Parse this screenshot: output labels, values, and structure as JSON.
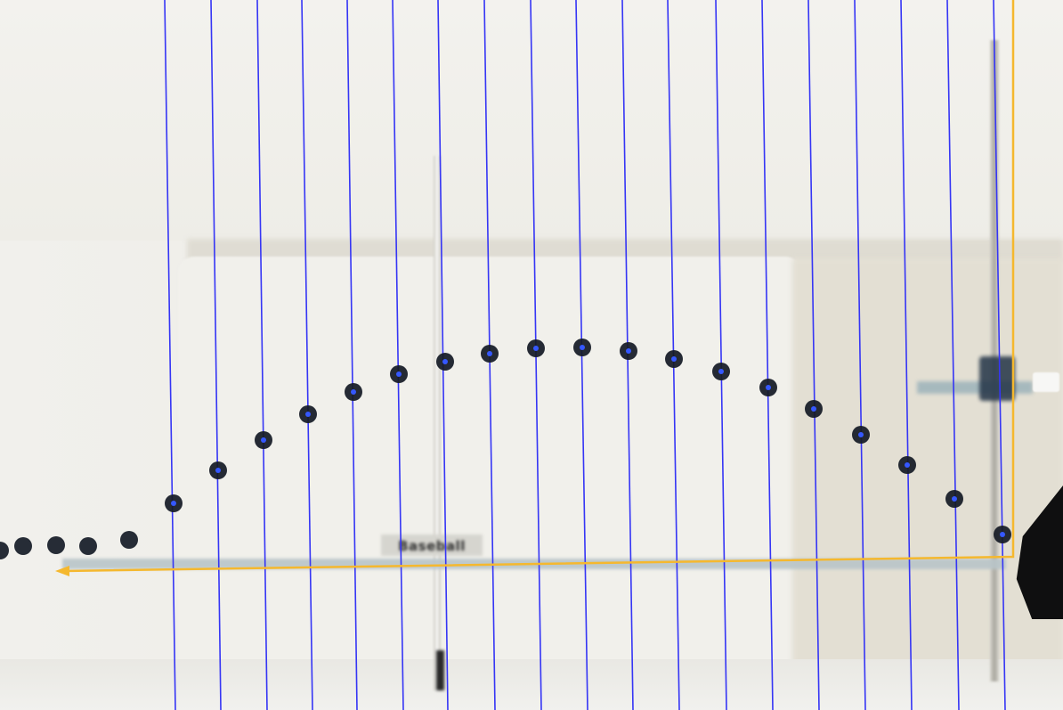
{
  "scene": {
    "description_free": true,
    "sign_text": "Baseball",
    "colors": {
      "grid_lines": "#3535f5",
      "trajectory_outline": "#f5b82e",
      "ball": "#151b26",
      "ball_marker": "#3558ff"
    },
    "counts": {
      "vertical_grid_lines": 19,
      "tracked_ball_positions": 19,
      "stationary_ball_positions": 6
    }
  }
}
